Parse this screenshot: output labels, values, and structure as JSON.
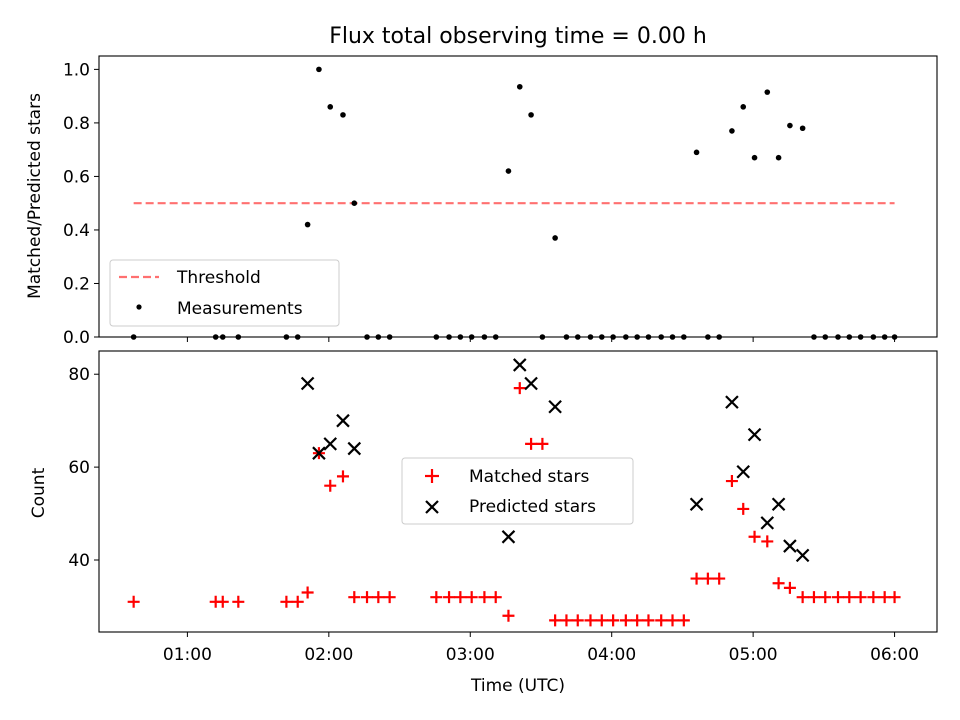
{
  "colors": {
    "threshold": "#ff7070",
    "matched": "#ff0000",
    "predicted": "#000000",
    "measure": "#000000"
  },
  "chart_data": [
    {
      "type": "scatter",
      "title": "Flux total observing time = 0.00 h",
      "ylabel": "Matched/Predicted stars",
      "xlim": [
        0.375,
        6.3
      ],
      "ylim": [
        0,
        1.05
      ],
      "yticks": [
        0.0,
        0.2,
        0.4,
        0.6,
        0.8,
        1.0
      ],
      "ytick_labels": [
        "0.0",
        "0.2",
        "0.4",
        "0.6",
        "0.8",
        "1.0"
      ],
      "threshold": {
        "label": "Threshold",
        "value": 0.5,
        "x_range": [
          0.62,
          6.0
        ]
      },
      "legend": [
        "Threshold",
        "Measurements"
      ],
      "legend_loc": "lower-left",
      "series": [
        {
          "name": "Measurements",
          "x": [
            0.62,
            1.2,
            1.25,
            1.36,
            1.7,
            1.78,
            1.85,
            1.93,
            2.01,
            2.1,
            2.18,
            2.27,
            2.35,
            2.43,
            2.76,
            2.85,
            2.93,
            3.01,
            3.1,
            3.18,
            3.27,
            3.35,
            3.43,
            3.51,
            3.6,
            3.68,
            3.76,
            3.85,
            3.93,
            4.01,
            4.1,
            4.18,
            4.26,
            4.35,
            4.43,
            4.51,
            4.6,
            4.68,
            4.76,
            4.85,
            4.93,
            5.01,
            5.1,
            5.18,
            5.26,
            5.35,
            5.43,
            5.51,
            5.6,
            5.68,
            5.76,
            5.85,
            5.93,
            6.0
          ],
          "y": [
            0,
            0,
            0,
            0,
            0,
            0,
            0.42,
            1.0,
            0.86,
            0.83,
            0.5,
            0,
            0,
            0,
            0,
            0,
            0,
            0,
            0,
            0,
            0.62,
            0.935,
            0.83,
            0,
            0.37,
            0,
            0,
            0,
            0,
            0,
            0,
            0,
            0,
            0,
            0,
            0,
            0.69,
            0,
            0,
            0.77,
            0.86,
            0.67,
            0.915,
            0.67,
            0.79,
            0.78,
            0,
            0,
            0,
            0,
            0,
            0,
            0,
            0
          ]
        }
      ]
    },
    {
      "type": "scatter",
      "xlabel": "Time (UTC)",
      "ylabel": "Count",
      "xlim": [
        0.375,
        6.3
      ],
      "ylim": [
        24.5,
        85
      ],
      "xticks": [
        1,
        2,
        3,
        4,
        5,
        6
      ],
      "xtick_labels": [
        "01:00",
        "02:00",
        "03:00",
        "04:00",
        "05:00",
        "06:00"
      ],
      "yticks": [
        40,
        60,
        80
      ],
      "ytick_labels": [
        "40",
        "60",
        "80"
      ],
      "legend": [
        "Matched stars",
        "Predicted stars"
      ],
      "legend_loc": "center",
      "series": [
        {
          "name": "Matched stars",
          "x": [
            0.62,
            1.2,
            1.25,
            1.36,
            1.7,
            1.78,
            1.85,
            1.93,
            2.01,
            2.1,
            2.18,
            2.27,
            2.35,
            2.43,
            2.76,
            2.85,
            2.93,
            3.01,
            3.1,
            3.18,
            3.27,
            3.35,
            3.43,
            3.51,
            3.6,
            3.68,
            3.76,
            3.85,
            3.93,
            4.01,
            4.1,
            4.18,
            4.26,
            4.35,
            4.43,
            4.51,
            4.6,
            4.68,
            4.76,
            4.85,
            4.93,
            5.01,
            5.1,
            5.18,
            5.26,
            5.35,
            5.43,
            5.51,
            5.6,
            5.68,
            5.76,
            5.85,
            5.93,
            6.0
          ],
          "y": [
            31,
            31,
            31,
            31,
            31,
            31,
            33,
            63,
            56,
            58,
            32,
            32,
            32,
            32,
            32,
            32,
            32,
            32,
            32,
            32,
            28,
            77,
            65,
            65,
            27,
            27,
            27,
            27,
            27,
            27,
            27,
            27,
            27,
            27,
            27,
            27,
            36,
            36,
            36,
            57,
            51,
            45,
            44,
            35,
            34,
            32,
            32,
            32,
            32,
            32,
            32,
            32,
            32,
            32
          ]
        },
        {
          "name": "Predicted stars",
          "x": [
            1.85,
            1.93,
            2.01,
            2.1,
            2.18,
            3.27,
            3.35,
            3.43,
            3.6,
            4.6,
            4.85,
            4.93,
            5.01,
            5.1,
            5.18,
            5.26,
            5.35
          ],
          "y": [
            78,
            63,
            65,
            70,
            64,
            45,
            82,
            78,
            73,
            52,
            74,
            59,
            67,
            48,
            52,
            43,
            41
          ]
        }
      ]
    }
  ]
}
